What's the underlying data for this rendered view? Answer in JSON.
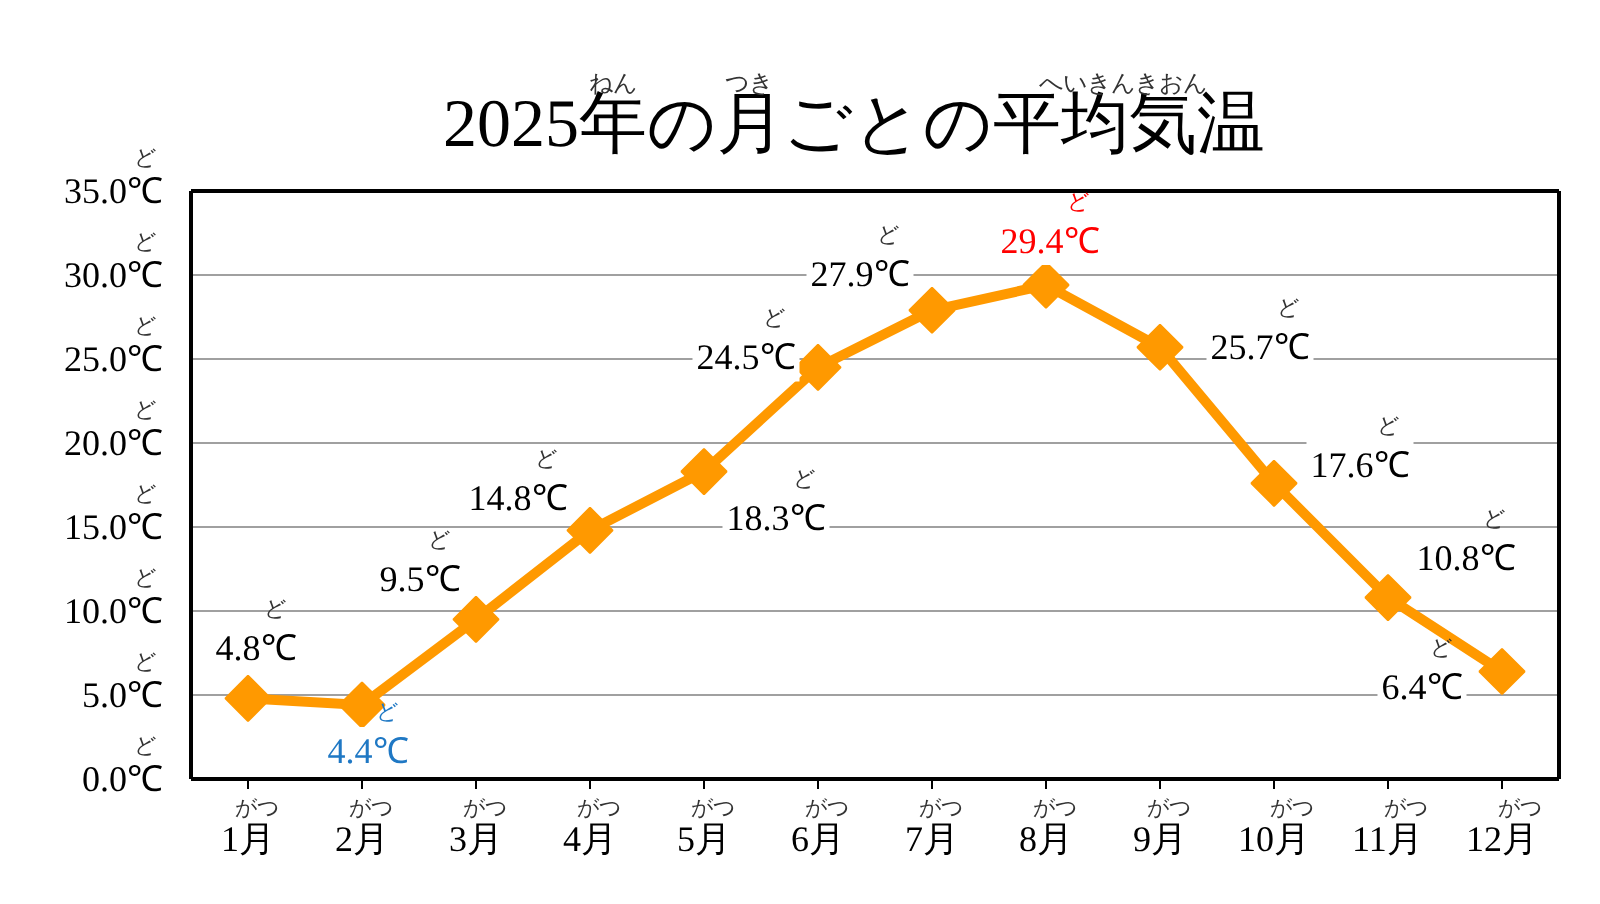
{
  "chart_data": {
    "type": "line",
    "title": "2025年$^{ねん}$の月$^{つき}$ごとの平均気温$^{へいきんきおん}$",
    "categories": [
      "1月$^{がつ}$",
      "2月$^{がつ}$",
      "3月$^{がつ}$",
      "4月$^{がつ}$",
      "5月$^{がつ}$",
      "6月$^{がつ}$",
      "7月$^{がつ}$",
      "8月$^{がつ}$",
      "9月$^{がつ}$",
      "10月$^{がつ}$",
      "11月$^{がつ}$",
      "12月$^{がつ}$"
    ],
    "values": [
      4.8,
      4.4,
      9.5,
      14.8,
      18.3,
      24.5,
      27.9,
      29.4,
      25.7,
      17.6,
      10.8,
      6.4
    ],
    "value_labels": [
      "4.8℃$^{ど}$",
      "4.4℃$^{ど}$",
      "9.5℃$^{ど}$",
      "14.8℃$^{ど}$",
      "18.3℃$^{ど}$",
      "24.5℃$^{ど}$",
      "27.9℃$^{ど}$",
      "29.4℃$^{ど}$",
      "25.7℃$^{ど}$",
      "17.6℃$^{ど}$",
      "10.8℃$^{ど}$",
      "6.4℃$^{ど}$"
    ],
    "color": "#ff9900",
    "ylim": [
      0,
      35
    ],
    "yticks": [
      {
        "value": 0,
        "label": "0.0℃$^{ど}$"
      },
      {
        "value": 5,
        "label": "5.0℃$^{ど}$"
      },
      {
        "value": 10,
        "label": "10.0℃$^{ど}$"
      },
      {
        "value": 15,
        "label": "15.0℃$^{ど}$"
      },
      {
        "value": 20,
        "label": "20.0℃$^{ど}$"
      },
      {
        "value": 25,
        "label": "25.0℃$^{ど}$"
      },
      {
        "value": 30,
        "label": "30.0℃$^{ど}$"
      },
      {
        "value": 35,
        "label": "35.0℃$^{ど}$"
      }
    ],
    "grid": "y",
    "marker": "diamond",
    "line_style": "solid"
  }
}
